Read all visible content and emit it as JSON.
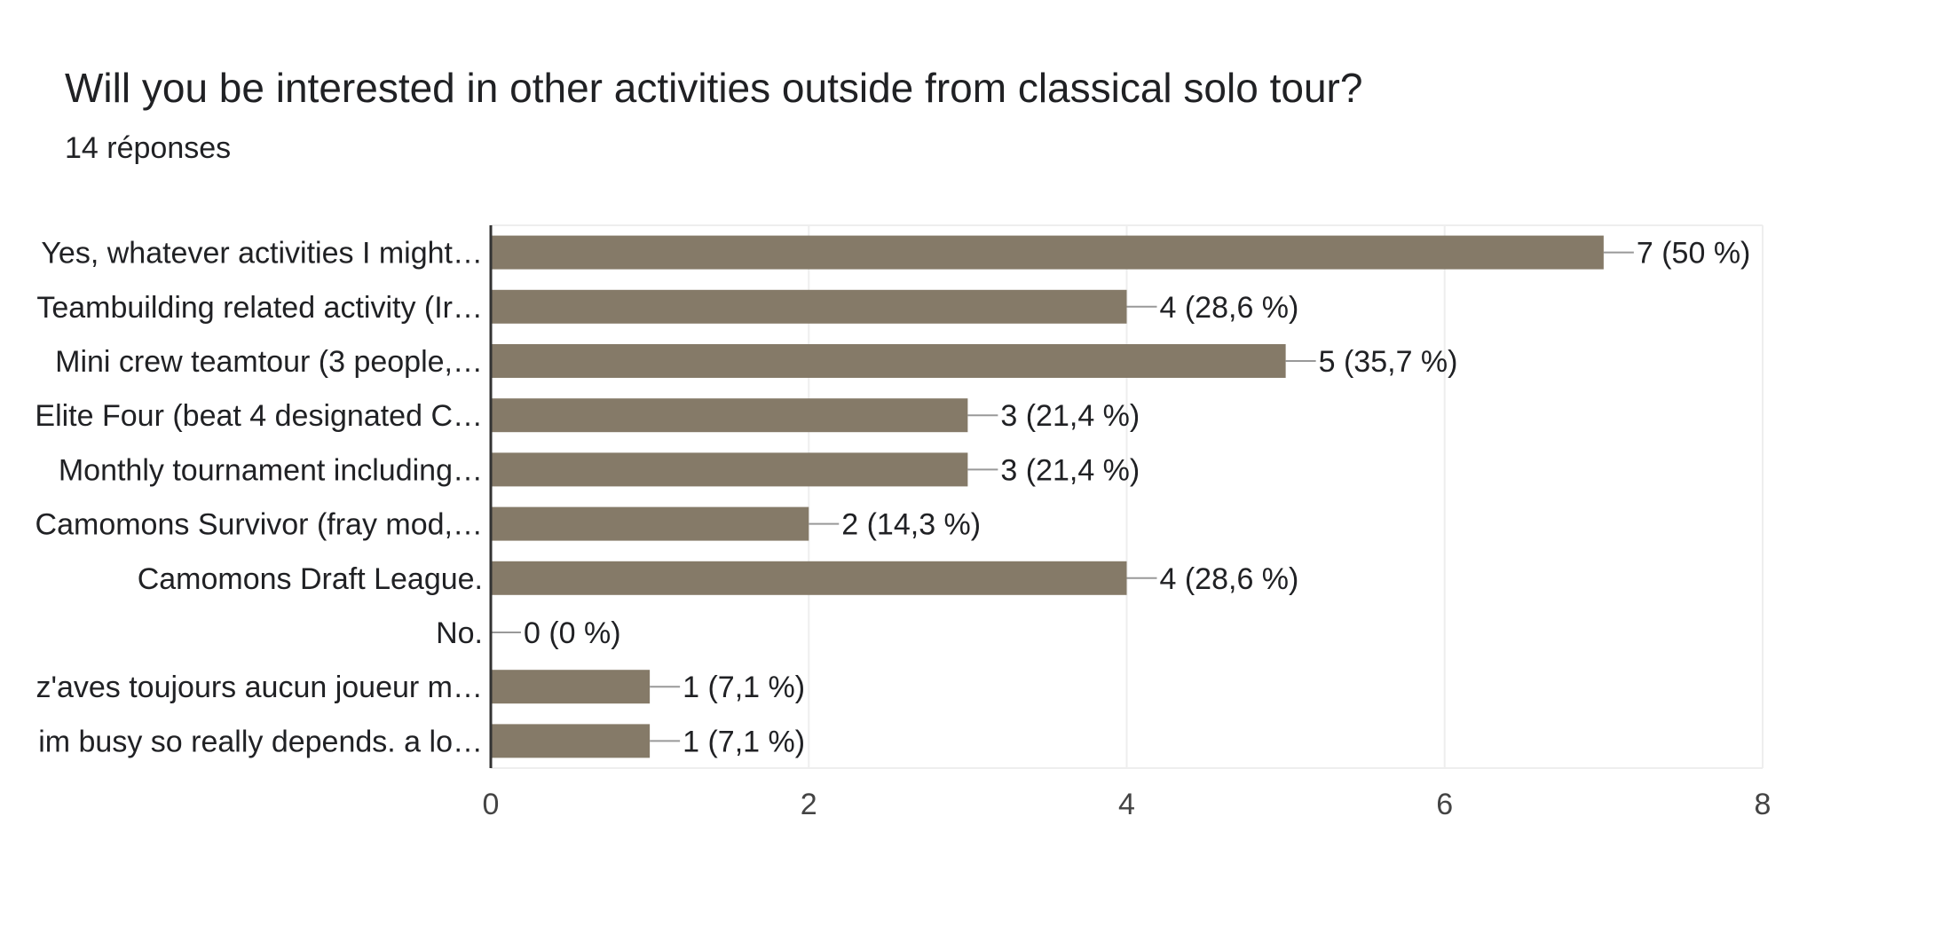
{
  "header": {
    "title": "Will you be interested in other activities outside from classical solo tour?",
    "responses": "14 réponses"
  },
  "colors": {
    "bar": "#857a68",
    "axis": "#333333",
    "grid": "#eeeeee",
    "leader": "#999999"
  },
  "chart_data": {
    "type": "bar",
    "orientation": "horizontal",
    "categories": [
      "Yes, whatever activities I might…",
      "Teambuilding related activity (Ir…",
      "Mini crew teamtour (3 people,…",
      "Elite Four (beat 4 designated C…",
      "Monthly tournament including…",
      "Camomons Survivor (fray mod,…",
      "Camomons Draft League.",
      "No.",
      "z'aves toujours aucun joueur m…",
      "im busy so really depends. a lo…"
    ],
    "values": [
      7,
      4,
      5,
      3,
      3,
      2,
      4,
      0,
      1,
      1
    ],
    "value_labels": [
      "7 (50 %)",
      "4 (28,6 %)",
      "5 (35,7 %)",
      "3 (21,4 %)",
      "3 (21,4 %)",
      "2 (14,3 %)",
      "4 (28,6 %)",
      "0 (0 %)",
      "1 (7,1 %)",
      "1 (7,1 %)"
    ],
    "xlim": [
      0,
      8
    ],
    "xticks": [
      "0",
      "2",
      "4",
      "6",
      "8"
    ],
    "grid": true,
    "legend": "none"
  }
}
